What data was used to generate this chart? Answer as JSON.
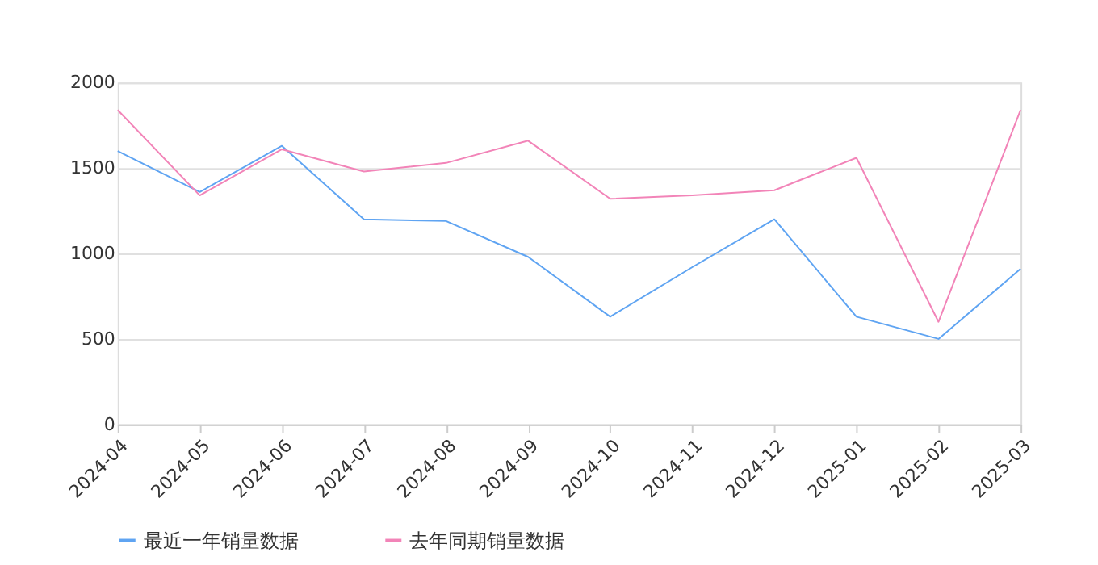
{
  "chart_data": {
    "type": "line",
    "categories": [
      "2024-04",
      "2024-05",
      "2024-06",
      "2024-07",
      "2024-08",
      "2024-09",
      "2024-10",
      "2024-11",
      "2024-12",
      "2025-01",
      "2025-02",
      "2025-03"
    ],
    "series": [
      {
        "name": "最近一年销量数据",
        "color": "#5fa4f2",
        "values": [
          1600,
          1360,
          1630,
          1200,
          1190,
          980,
          630,
          920,
          1200,
          630,
          500,
          910
        ]
      },
      {
        "name": "去年同期销量数据",
        "color": "#f284b8",
        "values": [
          1840,
          1340,
          1610,
          1480,
          1530,
          1660,
          1320,
          1340,
          1370,
          1560,
          600,
          1840
        ]
      }
    ],
    "ylim": [
      0,
      2000
    ],
    "yticks": [
      0,
      500,
      1000,
      1500,
      2000
    ],
    "grid": "y",
    "legend": "bottom",
    "marker": "none",
    "line_style": "solid"
  }
}
